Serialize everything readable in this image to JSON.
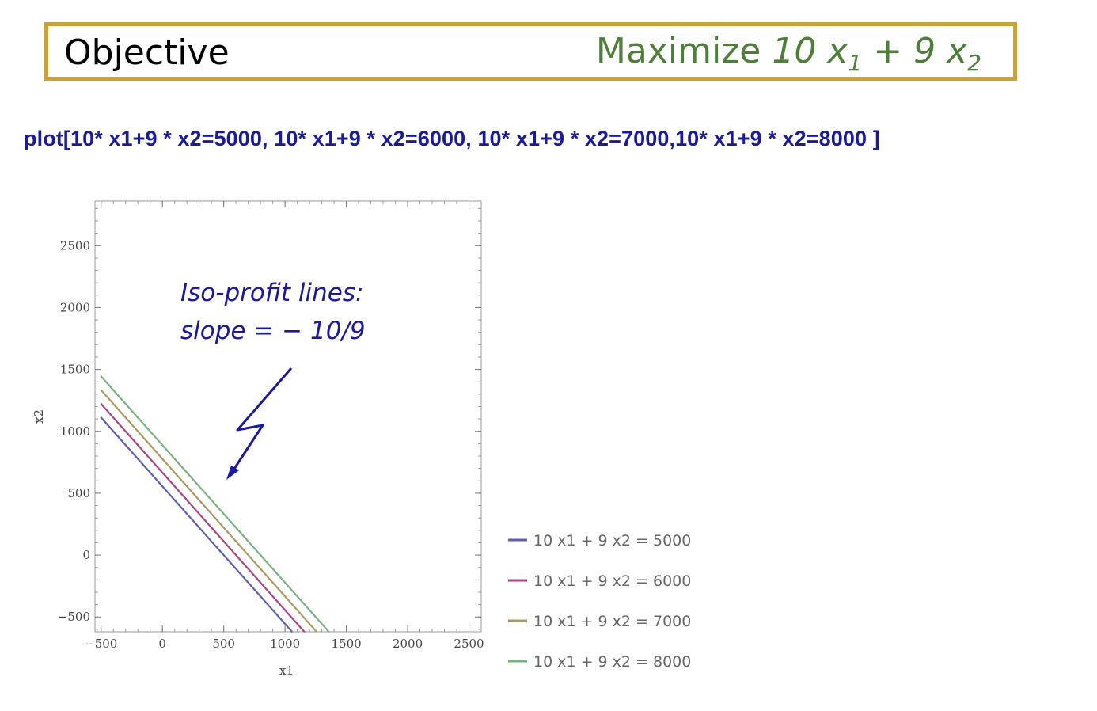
{
  "objective": {
    "label": "Objective",
    "prefix": "Maximize",
    "expression": {
      "c1": "10",
      "v1": "x",
      "s1": "1",
      "op": "+",
      "c2": "9",
      "v2": "x",
      "s2": "2"
    }
  },
  "plot_command": "plot[10* x1+9 * x2=5000, 10* x1+9 * x2=6000, 10* x1+9 * x2=7000,10* x1+9 * x2=8000 ]",
  "annotation": {
    "line1": "Iso-profit lines:",
    "line2": "slope = − 10/9"
  },
  "colors": {
    "border": "#C9A23C",
    "objective_text": "#4E7F3A",
    "command_text": "#1A1A9C",
    "annotation": "#1A1A9C"
  },
  "chart_data": {
    "type": "line",
    "xlabel": "x1",
    "ylabel": "x2",
    "xlim": [
      -550,
      2600
    ],
    "ylim": [
      -620,
      2860
    ],
    "xticks": [
      -500,
      0,
      500,
      1000,
      1500,
      2000,
      2500
    ],
    "yticks": [
      -500,
      0,
      500,
      1000,
      1500,
      2000,
      2500
    ],
    "xtick_labels": [
      "−500",
      "0",
      "500",
      "1000",
      "1500",
      "2000",
      "2500"
    ],
    "ytick_labels": [
      "−500",
      "0",
      "500",
      "1000",
      "1500",
      "2000",
      "2500"
    ],
    "grid": false,
    "legend_position": "right",
    "series": [
      {
        "name": "10 x1 + 9 x2 = 5000",
        "color": "#5E5EB0",
        "x": [
          -500,
          1056
        ],
        "y": [
          1111,
          -618
        ]
      },
      {
        "name": "10 x1 + 9 x2 = 6000",
        "color": "#A8447F",
        "x": [
          -500,
          1156
        ],
        "y": [
          1222,
          -618
        ]
      },
      {
        "name": "10 x1 + 9 x2 = 7000",
        "color": "#A89A5E",
        "x": [
          -500,
          1256
        ],
        "y": [
          1333,
          -618
        ]
      },
      {
        "name": "10 x1 + 9 x2 = 8000",
        "color": "#76B27E",
        "x": [
          -500,
          1356
        ],
        "y": [
          1444,
          -618
        ]
      }
    ]
  }
}
